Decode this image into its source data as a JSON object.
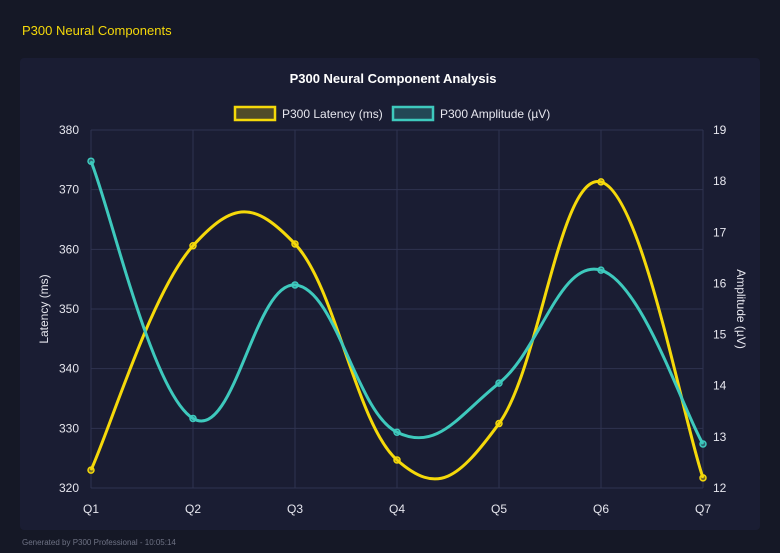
{
  "page": {
    "title": "P300 Neural Components",
    "footer": "Generated by P300 Professional - 10:05:14"
  },
  "chart_data": {
    "type": "line",
    "title": "P300 Neural Component Analysis",
    "categories": [
      "Q1",
      "Q2",
      "Q3",
      "Q4",
      "Q5",
      "Q6",
      "Q7"
    ],
    "y_left": {
      "label": "Latency (ms)",
      "range": [
        320,
        380
      ],
      "ticks": [
        320,
        330,
        340,
        350,
        360,
        370,
        380
      ]
    },
    "y_right": {
      "label": "Amplitude (µV)",
      "range": [
        12,
        19
      ],
      "ticks": [
        12,
        13,
        14,
        15,
        16,
        17,
        18,
        19
      ]
    },
    "grid": true,
    "legend": "top",
    "series": [
      {
        "name": "P300 Latency (ms)",
        "axis": "left",
        "color": "#f5d90a",
        "values": [
          323.0,
          360.6,
          360.9,
          324.7,
          330.8,
          371.3,
          321.7
        ]
      },
      {
        "name": "P300 Amplitude (µV)",
        "axis": "right",
        "color": "#3ec9bd",
        "values": [
          18.39,
          13.36,
          15.97,
          13.09,
          14.05,
          16.26,
          12.86
        ]
      }
    ]
  }
}
